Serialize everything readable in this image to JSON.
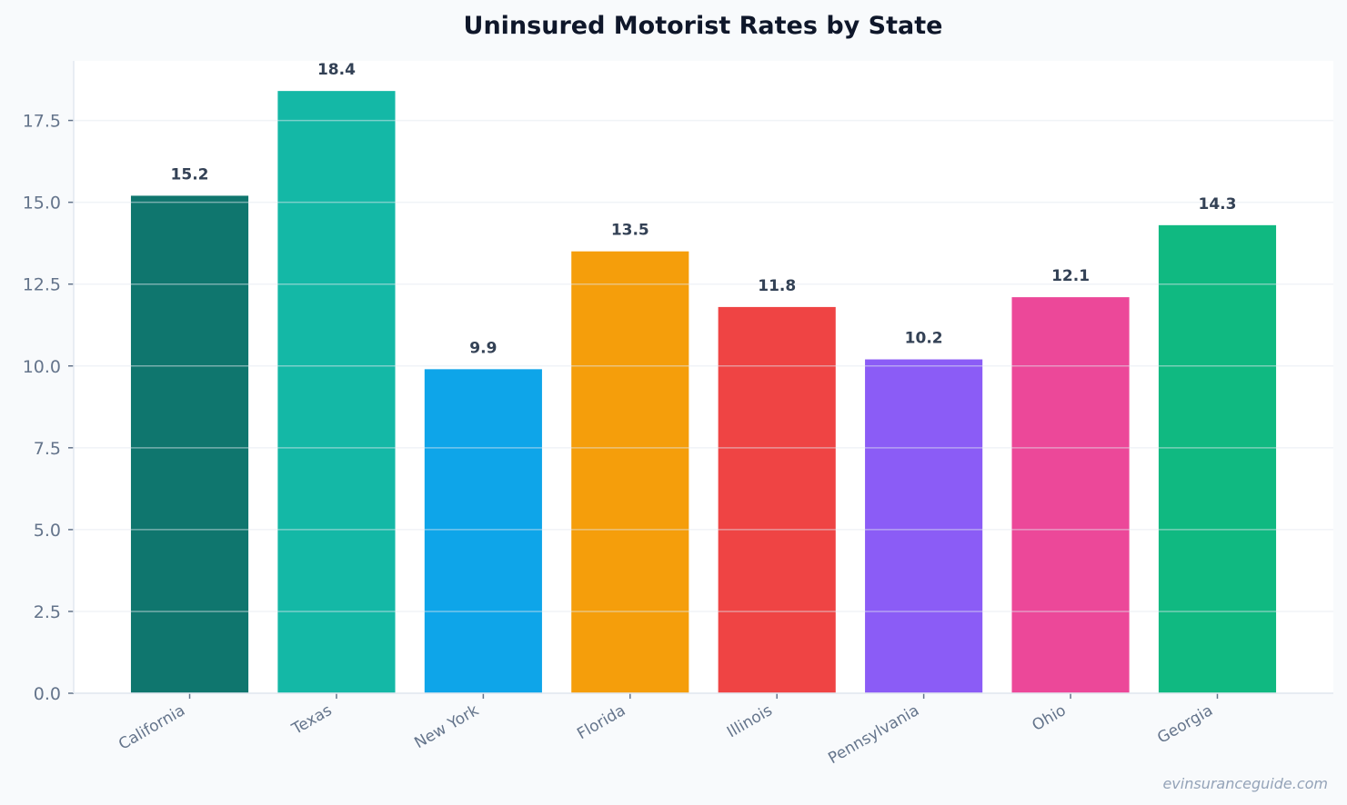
{
  "chart_data": {
    "type": "bar",
    "title": "Uninsured Motorist Rates by State",
    "xlabel": "",
    "ylabel": "",
    "categories": [
      "California",
      "Texas",
      "New York",
      "Florida",
      "Illinois",
      "Pennsylvania",
      "Ohio",
      "Georgia"
    ],
    "values": [
      15.2,
      18.4,
      9.9,
      13.5,
      11.8,
      10.2,
      12.1,
      14.3
    ],
    "data_labels": [
      "15.2",
      "18.4",
      "9.9",
      "13.5",
      "11.8",
      "10.2",
      "12.1",
      "14.3"
    ],
    "colors": [
      "#0f766e",
      "#14b8a6",
      "#0ea5e9",
      "#f59e0b",
      "#ef4444",
      "#8b5cf6",
      "#ec4899",
      "#10b981"
    ],
    "ylim": [
      0,
      19.32
    ],
    "yticks": [
      0,
      2.5,
      5,
      7.5,
      10,
      12.5,
      15,
      17.5
    ],
    "ytick_labels": [
      "0.0",
      "2.5",
      "5.0",
      "7.5",
      "10.0",
      "12.5",
      "15.0",
      "17.5"
    ],
    "grid": true,
    "legend": "none"
  },
  "watermark": "evinsuranceguide.com"
}
